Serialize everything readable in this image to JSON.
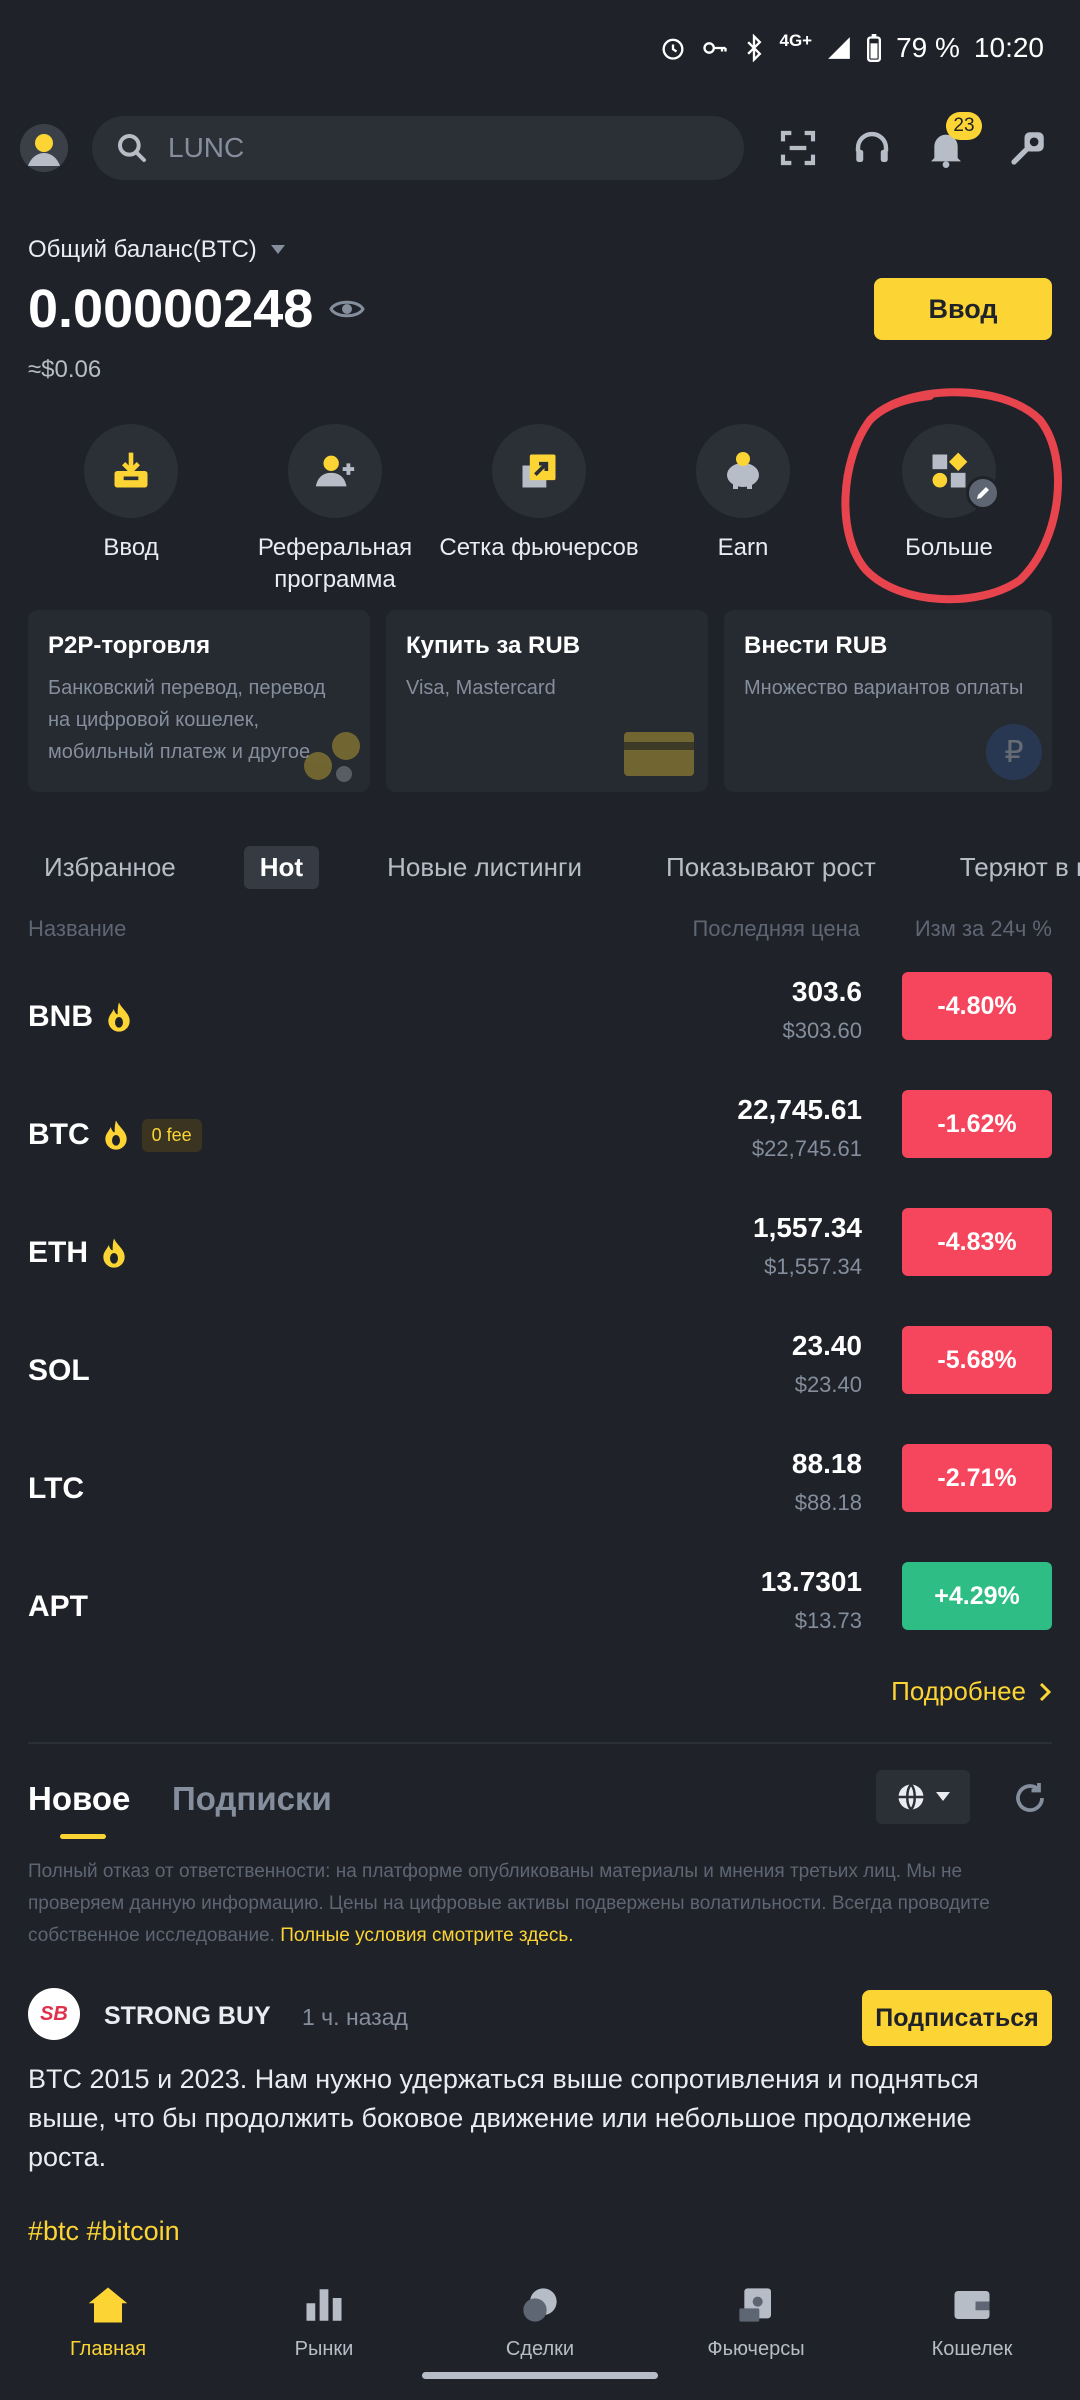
{
  "status_bar": {
    "network": "4G+",
    "battery": "79 %",
    "time": "10:20"
  },
  "header": {
    "search_placeholder": "LUNC",
    "notifications_count": "23"
  },
  "balance": {
    "label": "Общий баланс(BTC)",
    "value": "0.00000248",
    "usd": "≈$0.06",
    "deposit_label": "Ввод"
  },
  "quick_actions": [
    {
      "label": "Ввод",
      "icon": "deposit-icon"
    },
    {
      "label": "Реферальная программа",
      "icon": "referral-icon"
    },
    {
      "label": "Сетка фьючерсов",
      "icon": "futures-grid-icon"
    },
    {
      "label": "Earn",
      "icon": "piggy-bank-icon"
    },
    {
      "label": "Больше",
      "icon": "more-apps-icon"
    }
  ],
  "promo_cards": [
    {
      "title": "P2P-торговля",
      "desc": "Банковский перевод, перевод на цифровой кошелек, мобильный платеж и другое"
    },
    {
      "title": "Купить за RUB",
      "desc": "Visa, Mastercard"
    },
    {
      "title": "Внести RUB",
      "desc": "Множество вариантов оплаты"
    }
  ],
  "market": {
    "tabs": [
      "Избранное",
      "Hot",
      "Новые листинги",
      "Показывают рост",
      "Теряют в цене"
    ],
    "active_tab": "Hot",
    "col_name": "Название",
    "col_price": "Последняя цена",
    "col_change": "Изм за 24ч %",
    "rows": [
      {
        "symbol": "BNB",
        "fire": true,
        "fee": "",
        "price": "303.6",
        "usd": "$303.60",
        "change": "-4.80%",
        "dir": "neg"
      },
      {
        "symbol": "BTC",
        "fire": true,
        "fee": "0 fee",
        "price": "22,745.61",
        "usd": "$22,745.61",
        "change": "-1.62%",
        "dir": "neg"
      },
      {
        "symbol": "ETH",
        "fire": true,
        "fee": "",
        "price": "1,557.34",
        "usd": "$1,557.34",
        "change": "-4.83%",
        "dir": "neg"
      },
      {
        "symbol": "SOL",
        "fire": false,
        "fee": "",
        "price": "23.40",
        "usd": "$23.40",
        "change": "-5.68%",
        "dir": "neg"
      },
      {
        "symbol": "LTC",
        "fire": false,
        "fee": "",
        "price": "88.18",
        "usd": "$88.18",
        "change": "-2.71%",
        "dir": "neg"
      },
      {
        "symbol": "APT",
        "fire": false,
        "fee": "",
        "price": "13.7301",
        "usd": "$13.73",
        "change": "+4.29%",
        "dir": "pos"
      }
    ],
    "more_label": "Подробнее"
  },
  "feed": {
    "tab_new": "Новое",
    "tab_subs": "Подписки",
    "disclaimer": "Полный отказ от ответственности: на платформе опубликованы материалы и мнения третьих лиц. Мы не проверяем данную информацию. Цены на цифровые активы подвержены волатильности. Всегда проводите собственное исследование. ",
    "disclaimer_link": "Полные условия смотрите здесь.",
    "post": {
      "avatar_text": "SB",
      "author": "STRONG BUY",
      "time": "1 ч. назад",
      "subscribe_label": "Подписаться",
      "body": "BTC 2015 и 2023. Нам нужно удержаться выше сопротивления и подняться выше, что бы продолжить боковое движение или небольшое продолжение роста.",
      "tags": "#btc #bitcoin"
    }
  },
  "bottom_nav": [
    {
      "label": "Главная",
      "icon": "home-icon",
      "active": true
    },
    {
      "label": "Рынки",
      "icon": "markets-icon",
      "active": false
    },
    {
      "label": "Сделки",
      "icon": "trades-icon",
      "active": false
    },
    {
      "label": "Фьючерсы",
      "icon": "futures-icon",
      "active": false
    },
    {
      "label": "Кошелек",
      "icon": "wallet-icon",
      "active": false
    }
  ],
  "colors": {
    "accent": "#fcd535",
    "negative": "#f6465d",
    "positive": "#2ebd85",
    "background": "#1f2229"
  }
}
